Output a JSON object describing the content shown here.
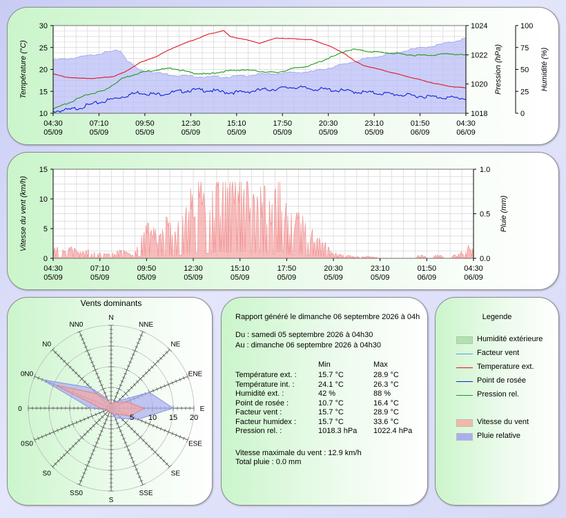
{
  "colors": {
    "humidity_fill": "#b9bdf6",
    "windchill": "#4aa0e6",
    "temp_ext": "#e0141e",
    "dewpoint": "#0a22d6",
    "pressure": "#1a9a1a",
    "wind_fill": "#f4a6a6",
    "rain_fill": "#a9aef0"
  },
  "chart_data": [
    {
      "type": "line",
      "x_tick_labels": [
        [
          "04:30",
          "05/09"
        ],
        [
          "07:10",
          "05/09"
        ],
        [
          "09:50",
          "05/09"
        ],
        [
          "12:30",
          "05/09"
        ],
        [
          "15:10",
          "05/09"
        ],
        [
          "17:50",
          "05/09"
        ],
        [
          "20:30",
          "05/09"
        ],
        [
          "23:10",
          "05/09"
        ],
        [
          "01:50",
          "06/09"
        ],
        [
          "04:30",
          "06/09"
        ]
      ],
      "x_range_hours": [
        0,
        24
      ],
      "ylabel_left": "Température (°C)",
      "ylim_left": [
        10,
        30
      ],
      "yticks_left": [
        "10",
        "15",
        "20",
        "25",
        "30"
      ],
      "ylabel_right1": "Pression (hPa)",
      "ylim_right1": [
        1018,
        1024
      ],
      "yticks_right1": [
        "1018",
        "1020",
        "1022",
        "1024"
      ],
      "ylabel_right2": "Humidité (%)",
      "ylim_right2": [
        0,
        100
      ],
      "yticks_right2": [
        "0",
        "25",
        "50",
        "75",
        "100"
      ],
      "grid": true,
      "series": [
        {
          "name": "Humidité extérieure",
          "axis": "right2",
          "style": "area",
          "x": [
            0,
            1,
            2,
            3,
            3.9,
            4.3,
            5,
            6,
            7,
            8,
            9,
            10,
            11,
            12,
            13,
            14,
            15,
            16,
            17,
            18,
            19,
            20,
            21,
            22,
            23,
            24
          ],
          "y": [
            61,
            63,
            66,
            70,
            72,
            61,
            50,
            47,
            44,
            43,
            42,
            42,
            43,
            45,
            46,
            47,
            48,
            52,
            57,
            62,
            66,
            70,
            74,
            77,
            81,
            86
          ]
        },
        {
          "name": "Temperature ext.",
          "axis": "left",
          "x": [
            0,
            0.7,
            1.5,
            2.5,
            3.5,
            4.2,
            5,
            6,
            7,
            8,
            9,
            9.9,
            10.3,
            11,
            12,
            13,
            14,
            15,
            16,
            16.5,
            17,
            17.5,
            18,
            19,
            20,
            21,
            22,
            23,
            24
          ],
          "y": [
            19,
            18.3,
            18,
            18,
            18.4,
            19.5,
            21.5,
            23,
            25,
            26.5,
            28,
            28.9,
            27.5,
            27,
            26,
            27.2,
            27,
            26.8,
            25.5,
            24.5,
            23.5,
            22,
            21,
            20,
            19,
            18,
            17,
            16.2,
            15.8
          ]
        },
        {
          "name": "Point de rosée",
          "axis": "left",
          "x": [
            0,
            1,
            2,
            3,
            4,
            5,
            6,
            7,
            8,
            9,
            10,
            11,
            12,
            13,
            14,
            15,
            16,
            17,
            18,
            19,
            20,
            21,
            22,
            23,
            24
          ],
          "y": [
            10.7,
            11,
            12,
            13,
            14,
            15,
            14.5,
            15,
            15.5,
            15.5,
            15,
            15,
            15.5,
            15.8,
            16.2,
            15.8,
            15.6,
            15.3,
            15,
            14.8,
            14.5,
            14.2,
            14,
            13.8,
            13.6
          ]
        },
        {
          "name": "Pression rel.",
          "axis": "right1",
          "x": [
            0,
            1,
            2,
            3,
            4,
            5,
            6,
            7,
            8,
            9,
            10,
            11,
            12,
            13,
            14,
            15,
            16,
            16.5,
            17,
            17.5,
            18,
            19,
            20,
            21,
            22,
            23,
            24
          ],
          "y": [
            1018.3,
            1018.8,
            1019.3,
            1019.6,
            1020.4,
            1020.8,
            1021,
            1021.1,
            1020.8,
            1020.7,
            1020.9,
            1021,
            1020.9,
            1020.8,
            1021.1,
            1021.3,
            1021.8,
            1022,
            1022.3,
            1022.4,
            1022.3,
            1022.2,
            1022.1,
            1022,
            1022,
            1022.1,
            1022
          ]
        }
      ]
    },
    {
      "type": "area",
      "x_tick_labels": [
        [
          "04:30",
          "05/09"
        ],
        [
          "07:10",
          "05/09"
        ],
        [
          "09:50",
          "05/09"
        ],
        [
          "12:30",
          "05/09"
        ],
        [
          "15:10",
          "05/09"
        ],
        [
          "17:50",
          "05/09"
        ],
        [
          "20:30",
          "05/09"
        ],
        [
          "23:10",
          "05/09"
        ],
        [
          "01:50",
          "06/09"
        ],
        [
          "04:30",
          "06/09"
        ]
      ],
      "x_range_hours": [
        0,
        24
      ],
      "ylabel_left": "Vitesse du vent (km/h)",
      "ylim_left": [
        0,
        15
      ],
      "yticks_left": [
        "0",
        "5",
        "10",
        "15"
      ],
      "ylabel_right": "Pluie (mm)",
      "ylim_right": [
        0,
        1
      ],
      "yticks_right": [
        "0.0",
        "0.5",
        "1.0"
      ],
      "grid": true,
      "series": [
        {
          "name": "Vitesse du vent",
          "axis": "left",
          "x": [
            0,
            0.5,
            1,
            1.5,
            2,
            2.5,
            3,
            3.5,
            4,
            4.5,
            5,
            5.5,
            6,
            6.5,
            7,
            7.5,
            8,
            8.5,
            9,
            9.5,
            10,
            10.5,
            11,
            11.5,
            12,
            12.5,
            13,
            13.5,
            14,
            14.5,
            15,
            15.5,
            16,
            16.5,
            17,
            17.5,
            18,
            18.5,
            19,
            19.5,
            20,
            20.5,
            21,
            21.5,
            22,
            22.5,
            23,
            23.5,
            24
          ],
          "y": [
            1.5,
            1.2,
            1.5,
            0.8,
            1.2,
            0.8,
            0.5,
            0.8,
            1.2,
            0.5,
            3,
            4.5,
            3,
            5,
            4,
            6.5,
            9,
            10,
            8,
            11,
            9,
            12,
            10,
            8,
            9,
            7,
            11,
            5,
            7,
            4,
            3,
            2,
            0.8,
            0.5,
            0.3,
            0.2,
            0.3,
            0.2,
            0,
            0,
            0,
            0,
            0.5,
            0,
            0.5,
            0,
            0.5,
            1,
            2.5
          ]
        },
        {
          "name": "Pluie relative",
          "axis": "right",
          "x": [
            0,
            24
          ],
          "y": [
            0,
            0
          ]
        }
      ]
    },
    {
      "type": "radar",
      "title": "Vents dominants",
      "directions": [
        "N",
        "NNE",
        "NE",
        "ENE",
        "E",
        "ESE",
        "SE",
        "SSE",
        "S",
        "SSO",
        "SO",
        "OSO",
        "O",
        "ONO",
        "NO",
        "NNO"
      ],
      "direction_labels": [
        "N",
        "NNE",
        "NE",
        "ENE",
        "E",
        "ESE",
        "SE",
        "SSE",
        "S",
        "SS0",
        "S0",
        "0S0",
        "0",
        "0N0",
        "N0",
        "NN0"
      ],
      "radial_ticks": [
        "5",
        "10",
        "15",
        "20"
      ],
      "rmax": 20,
      "series": [
        {
          "name": "Vitesse du vent",
          "values": [
            1,
            1.5,
            2,
            4,
            8,
            5,
            2,
            1.5,
            1,
            1,
            1,
            1,
            2.5,
            14.5,
            5,
            2
          ]
        },
        {
          "name": "Pluie relative",
          "values": [
            1,
            1.5,
            2.5,
            10,
            15,
            7,
            3.5,
            2.5,
            1,
            1,
            1,
            1,
            5,
            18,
            7,
            2.5
          ]
        }
      ]
    }
  ],
  "report": {
    "generated": "Rapport généré le dimanche 06 septembre 2026 à 04h",
    "from": "Du : samedi 05 septembre 2026 à 04h30",
    "to": "Au : dimanche 06 septembre 2026 à 04h30",
    "col_min": "Min",
    "col_max": "Max",
    "rows": [
      {
        "label": "Température ext. :",
        "min": "15.7 °C",
        "max": "28.9 °C"
      },
      {
        "label": "Température int. :",
        "min": "24.1 °C",
        "max": "26.3 °C"
      },
      {
        "label": "Humidité ext. :",
        "min": "42 %",
        "max": "88 %"
      },
      {
        "label": "Point de rosée :",
        "min": "10.7 °C",
        "max": "16.4 °C"
      },
      {
        "label": "Facteur vent :",
        "min": "15.7 °C",
        "max": "28.9 °C"
      },
      {
        "label": "Facteur humidex :",
        "min": "15.7 °C",
        "max": "33.6 °C"
      },
      {
        "label": "Pression rel. :",
        "min": "1018.3 hPa",
        "max": "1022.4 hPa"
      }
    ],
    "max_wind": "Vitesse maximale du vent : 12.9 km/h",
    "total_rain": "Total pluie : 0.0 mm"
  },
  "legend": {
    "title": "Legende",
    "items": [
      {
        "label": "Humidité extérieure",
        "type": "box",
        "color": "#aee3ae"
      },
      {
        "label": "Facteur vent",
        "type": "line",
        "color": "#4aa0e6"
      },
      {
        "label": "Temperature ext.",
        "type": "line",
        "color": "#e0141e"
      },
      {
        "label": "Point de rosée",
        "type": "line",
        "color": "#0a22d6"
      },
      {
        "label": "Pression rel.",
        "type": "line",
        "color": "#1a9a1a"
      },
      {
        "label": "Vitesse du vent",
        "type": "box",
        "color": "#f2b8a8"
      },
      {
        "label": "Pluie relative",
        "type": "box",
        "color": "#a9aef0"
      }
    ]
  }
}
